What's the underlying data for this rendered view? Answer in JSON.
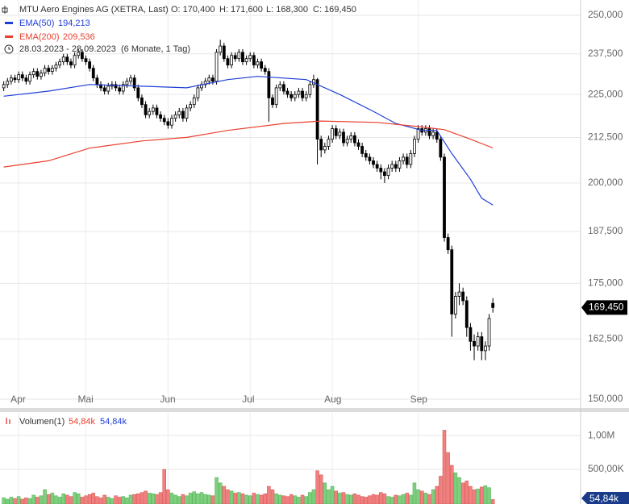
{
  "chart_data": [
    {
      "type": "candlestick",
      "title": "MTU Aero Engines AG (XETRA, Last)",
      "ohlc_labels": [
        "O: 170,400",
        "H: 171,600",
        "L: 168,300",
        "C: 169,450"
      ],
      "period": "28.03.2023 - 28.09.2023",
      "interval": "(6 Monate, 1 Tag)",
      "last_label": "169,450",
      "log_scale": true,
      "grid": true,
      "up_color": "#ffffff",
      "down_color": "#000000",
      "xlim": [
        -1,
        154.5
      ],
      "xticks": [
        {
          "value": 4,
          "label": "Apr"
        },
        {
          "value": 22,
          "label": "Mai"
        },
        {
          "value": 44,
          "label": "Jun"
        },
        {
          "value": 66,
          "label": "Jul"
        },
        {
          "value": 88,
          "label": "Aug"
        },
        {
          "value": 111,
          "label": "Sep"
        }
      ],
      "ylim": [
        150,
        250
      ],
      "yticks": [
        {
          "value": 150,
          "label": "150,000"
        },
        {
          "value": 162.5,
          "label": "162,500"
        },
        {
          "value": 175,
          "label": "175,000"
        },
        {
          "value": 187.5,
          "label": "187,500"
        },
        {
          "value": 200,
          "label": "200,000"
        },
        {
          "value": 212.5,
          "label": "212,500"
        },
        {
          "value": 225,
          "label": "225,000"
        },
        {
          "value": 237.5,
          "label": "237,500"
        },
        {
          "value": 250,
          "label": "250,000"
        }
      ],
      "open": [
        227,
        228,
        229,
        230,
        229.5,
        231,
        230,
        229,
        231,
        232,
        230.5,
        231.5,
        233,
        232,
        233,
        234,
        235,
        236.5,
        235,
        234,
        237,
        238,
        236,
        235,
        233,
        230,
        228,
        227,
        226,
        227.5,
        228,
        227,
        226,
        228,
        229,
        230,
        227,
        224,
        222,
        219,
        220,
        221,
        219,
        218,
        217,
        216,
        218,
        219,
        220,
        218,
        221,
        222,
        224,
        227,
        228,
        229,
        230,
        229,
        238,
        240,
        236,
        234,
        237,
        236,
        238,
        235,
        236,
        237,
        234,
        235,
        233,
        232,
        224,
        222,
        227,
        228,
        226,
        225,
        224,
        225,
        226,
        224,
        225,
        228,
        229.5,
        212,
        209,
        210,
        212,
        215,
        213,
        214,
        211,
        212,
        213,
        211,
        210,
        208,
        207,
        206,
        205,
        204,
        203,
        202,
        204,
        205,
        204,
        206,
        207,
        205,
        208,
        212,
        215,
        214,
        215,
        213,
        214,
        212,
        207,
        186,
        183,
        168,
        172,
        173,
        171,
        165,
        162,
        161,
        163,
        160,
        161,
        170.4
      ],
      "high": [
        229,
        230,
        231,
        231,
        232,
        232,
        231,
        232,
        233,
        233,
        232.5,
        234,
        234,
        234,
        235,
        236,
        237.5,
        237.5,
        236,
        238,
        239,
        239,
        237,
        236,
        234,
        231,
        229,
        228,
        228.5,
        229,
        229,
        228,
        229,
        230,
        231,
        231,
        228,
        225,
        223,
        221,
        222,
        222,
        220,
        219,
        218,
        219,
        220,
        221,
        221,
        222,
        223,
        225,
        228,
        229,
        230,
        231,
        231,
        239,
        242,
        241,
        237,
        238,
        238,
        239,
        239,
        237,
        238,
        238,
        236,
        236,
        234,
        233,
        225,
        228,
        229,
        229,
        227,
        226,
        226,
        227,
        227,
        226,
        229,
        231,
        230,
        213,
        211,
        213,
        216,
        216,
        215,
        215,
        213,
        214,
        214,
        212,
        211,
        209,
        208,
        207,
        206,
        205,
        204,
        205,
        206,
        206,
        207,
        208,
        208,
        209,
        213,
        216,
        216,
        216,
        216,
        215,
        215,
        213,
        208,
        187,
        184,
        173,
        175,
        174,
        172,
        166,
        163.5,
        164,
        164,
        162,
        168,
        171.6
      ],
      "low": [
        226,
        227,
        228,
        228.5,
        228.5,
        229,
        228,
        228,
        230,
        229.5,
        229.5,
        230.5,
        231,
        231,
        232,
        233,
        234,
        234,
        233,
        233,
        236,
        235,
        234,
        232,
        229,
        227,
        226,
        225,
        225,
        226.5,
        226,
        225,
        225,
        227,
        228,
        226,
        223,
        221,
        218,
        218,
        219,
        218,
        217,
        216,
        215,
        215,
        217,
        218,
        217,
        217,
        220,
        221,
        223,
        226,
        227,
        228,
        228,
        228,
        237,
        235,
        233,
        233,
        235,
        235,
        234,
        234,
        235,
        233,
        233,
        232,
        231,
        217,
        221,
        221,
        226,
        225,
        224,
        223,
        223,
        224,
        223,
        223,
        224,
        227,
        205,
        207,
        208,
        209,
        211,
        212,
        212,
        210,
        210,
        211,
        210,
        209,
        207,
        206,
        205,
        204,
        203,
        201,
        200,
        201,
        203,
        203,
        203,
        205,
        204,
        204,
        207,
        211,
        213,
        213,
        212,
        212,
        211,
        206,
        185,
        182,
        163,
        167,
        170,
        170,
        163,
        160,
        158,
        160,
        158,
        158,
        160,
        168.3
      ],
      "close": [
        228,
        229,
        230,
        229.5,
        231,
        230,
        229,
        231,
        232,
        230.5,
        231.5,
        233,
        232,
        233,
        234,
        235,
        236.5,
        235,
        234,
        237,
        238,
        236,
        235,
        233,
        230,
        228,
        227,
        226,
        227.5,
        228,
        227,
        226,
        228,
        229,
        230,
        227,
        224,
        222,
        219,
        220,
        221,
        219,
        218,
        217,
        216,
        218,
        219,
        220,
        218,
        221,
        222,
        224,
        227,
        228,
        229,
        230,
        229,
        238,
        240,
        236,
        234,
        237,
        236,
        238,
        235,
        236,
        237,
        234,
        235,
        233,
        232,
        224,
        222,
        227,
        228,
        226,
        225,
        224,
        225,
        226,
        224,
        225,
        228,
        229.5,
        212,
        209,
        210,
        212,
        215,
        213,
        214,
        211,
        212,
        213,
        211,
        210,
        208,
        207,
        206,
        205,
        204,
        203,
        202,
        204,
        205,
        204,
        206,
        207,
        205,
        208,
        212,
        215,
        214,
        215,
        213,
        214,
        212,
        207,
        186,
        183,
        168,
        172,
        173,
        171,
        165,
        162,
        161,
        163,
        160,
        161,
        167,
        169.45
      ],
      "series": [
        {
          "name": "EMA(50)",
          "last_label": "194,213",
          "color": "#1f3fd8",
          "x": [
            0,
            12,
            23,
            37,
            49,
            60,
            68,
            81,
            90,
            99,
            105,
            112,
            116,
            120,
            125,
            128,
            131
          ],
          "values": [
            224.5,
            226,
            228,
            227.5,
            227,
            229.5,
            230.5,
            229.5,
            225,
            220,
            216.5,
            214.5,
            214.5,
            208,
            201,
            196,
            194.213
          ]
        },
        {
          "name": "EMA(200)",
          "last_label": "209,536",
          "color": "#e8402f",
          "x": [
            0,
            12,
            23,
            37,
            49,
            60,
            75,
            85,
            100,
            112,
            118,
            125,
            131
          ],
          "values": [
            204.3,
            206,
            209.5,
            211.5,
            212.5,
            214.5,
            216.5,
            217.2,
            216.8,
            215.5,
            214.7,
            212,
            209.536
          ]
        }
      ]
    },
    {
      "type": "bar",
      "title": "Volumen(1)",
      "last_labels": [
        "54,84k",
        "54,84k"
      ],
      "up_color": "#7ecf7e",
      "down_color": "#f08080",
      "ylim": [
        0,
        1300000
      ],
      "yticks": [
        {
          "value": 500000,
          "label": "500,00K"
        },
        {
          "value": 1000000,
          "label": "1,00M"
        }
      ],
      "values": [
        80000,
        60000,
        90000,
        70000,
        100000,
        60000,
        80000,
        70000,
        120000,
        90000,
        110000,
        200000,
        130000,
        150000,
        110000,
        90000,
        140000,
        120000,
        100000,
        160000,
        140000,
        90000,
        110000,
        130000,
        150000,
        100000,
        80000,
        120000,
        90000,
        70000,
        110000,
        90000,
        100000,
        80000,
        120000,
        130000,
        140000,
        160000,
        180000,
        150000,
        140000,
        130000,
        160000,
        500000,
        200000,
        150000,
        120000,
        100000,
        130000,
        110000,
        150000,
        170000,
        140000,
        160000,
        130000,
        120000,
        110000,
        380000,
        300000,
        250000,
        200000,
        180000,
        150000,
        160000,
        140000,
        120000,
        110000,
        150000,
        130000,
        120000,
        140000,
        250000,
        200000,
        140000,
        120000,
        110000,
        100000,
        130000,
        110000,
        90000,
        120000,
        100000,
        160000,
        200000,
        480000,
        420000,
        300000,
        200000,
        250000,
        180000,
        150000,
        160000,
        130000,
        120000,
        140000,
        120000,
        100000,
        90000,
        110000,
        130000,
        120000,
        160000,
        140000,
        100000,
        90000,
        120000,
        110000,
        130000,
        150000,
        120000,
        300000,
        200000,
        180000,
        150000,
        130000,
        200000,
        250000,
        400000,
        1080000,
        750000,
        560000,
        450000,
        380000,
        300000,
        330000,
        250000,
        200000,
        210000,
        240000,
        260000,
        230000,
        54840
      ]
    }
  ]
}
